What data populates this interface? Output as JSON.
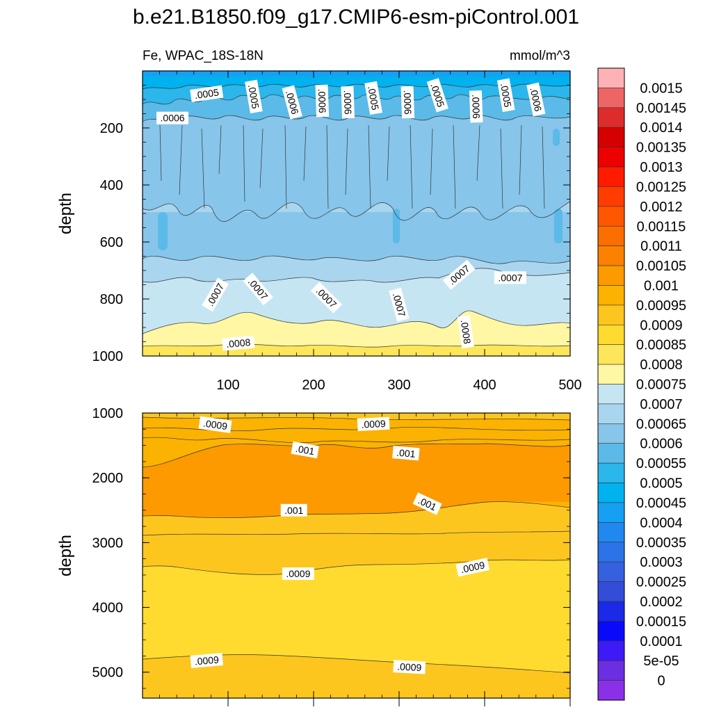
{
  "figure": {
    "title": "b.e21.B1850.f09_g17.CMIP6-esm-piControl.001",
    "left_subtitle": "Fe, WPAC_18S-18N",
    "right_subtitle": "mmol/m^3"
  },
  "chart_data": [
    {
      "type": "contour",
      "panel": "upper",
      "ylabel": "depth",
      "xlabel": "",
      "xlim": [
        0,
        500
      ],
      "ylim": [
        1000,
        0
      ],
      "x_ticks": [
        100,
        200,
        300,
        400,
        500
      ],
      "y_ticks": [
        200,
        400,
        600,
        800,
        1000
      ],
      "contour_labels": [
        {
          "text": ".0005",
          "x": 75,
          "y": 80
        },
        {
          "text": ".0005",
          "x": 130,
          "y": 90
        },
        {
          "text": ".0006",
          "x": 175,
          "y": 110
        },
        {
          "text": ".0006",
          "x": 210,
          "y": 105
        },
        {
          "text": ".0006",
          "x": 240,
          "y": 110
        },
        {
          "text": ".0005",
          "x": 270,
          "y": 95
        },
        {
          "text": ".0006",
          "x": 310,
          "y": 110
        },
        {
          "text": ".0005",
          "x": 345,
          "y": 85
        },
        {
          "text": ".0006",
          "x": 390,
          "y": 125
        },
        {
          "text": ".0005",
          "x": 425,
          "y": 85
        },
        {
          "text": ".0006",
          "x": 460,
          "y": 100
        },
        {
          "text": ".0006",
          "x": 35,
          "y": 165
        },
        {
          "text": ".0007",
          "x": 85,
          "y": 785
        },
        {
          "text": ".0007",
          "x": 135,
          "y": 765
        },
        {
          "text": ".0007",
          "x": 215,
          "y": 795
        },
        {
          "text": ".0007",
          "x": 300,
          "y": 820
        },
        {
          "text": ".0007",
          "x": 370,
          "y": 715
        },
        {
          "text": ".0007",
          "x": 430,
          "y": 725
        },
        {
          "text": ".0008",
          "x": 112,
          "y": 955
        },
        {
          "text": ".0008",
          "x": 378,
          "y": 915
        }
      ]
    },
    {
      "type": "contour",
      "panel": "lower",
      "ylabel": "depth",
      "xlabel": "",
      "xlim": [
        0,
        500
      ],
      "ylim": [
        5400,
        1000
      ],
      "y_ticks": [
        1000,
        2000,
        3000,
        4000,
        5000
      ],
      "contour_labels": [
        {
          "text": ".0009",
          "x": 85,
          "y": 1180
        },
        {
          "text": ".0009",
          "x": 270,
          "y": 1170
        },
        {
          "text": ".001",
          "x": 190,
          "y": 1570
        },
        {
          "text": ".001",
          "x": 308,
          "y": 1620
        },
        {
          "text": ".001",
          "x": 177,
          "y": 2500
        },
        {
          "text": ".001",
          "x": 333,
          "y": 2400
        },
        {
          "text": ".0009",
          "x": 182,
          "y": 3480
        },
        {
          "text": ".0009",
          "x": 386,
          "y": 3380
        },
        {
          "text": ".0009",
          "x": 75,
          "y": 4820
        },
        {
          "text": ".0009",
          "x": 312,
          "y": 4920
        }
      ]
    }
  ],
  "colorbar": {
    "labels": [
      "0.0015",
      "0.00145",
      "0.0014",
      "0.00135",
      "0.0013",
      "0.00125",
      "0.0012",
      "0.00115",
      "0.0011",
      "0.00105",
      "0.001",
      "0.00095",
      "0.0009",
      "0.00085",
      "0.0008",
      "0.00075",
      "0.0007",
      "0.00065",
      "0.0006",
      "0.00055",
      "0.0005",
      "0.00045",
      "0.0004",
      "0.00035",
      "0.0003",
      "0.00025",
      "0.0002",
      "0.00015",
      "0.0001",
      "5e-05",
      "0"
    ],
    "colors": [
      "#ffb2b5",
      "#ee6565",
      "#dd2c2c",
      "#d70000",
      "#ec0000",
      "#ff1a00",
      "#ff3d00",
      "#ff5600",
      "#fd6e00",
      "#fc8100",
      "#fc9a00",
      "#fcb200",
      "#fdc61f",
      "#fedb2e",
      "#fee65a",
      "#fff7a3",
      "#c6e5f3",
      "#a9d6ee",
      "#87c5ea",
      "#5bbae8",
      "#2bb6ec",
      "#00b2ef",
      "#16a0f2",
      "#2088ef",
      "#2b73e6",
      "#3560e0",
      "#334dd9",
      "#1b2ae6",
      "#0a0afa",
      "#3d1af6",
      "#6b2ee0",
      "#8a30e6"
    ]
  }
}
